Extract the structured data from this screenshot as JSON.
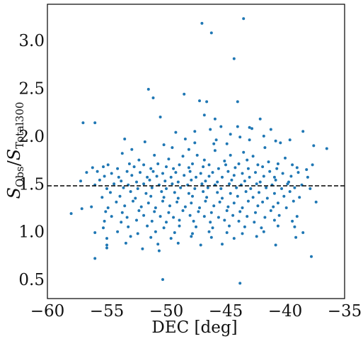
{
  "chart_data": {
    "type": "scatter",
    "xlabel": "DEC [deg]",
    "ylabel": {
      "S1": "S",
      "sub1": "Obs",
      "slash": "/",
      "S2": "S",
      "sub2": "Total300"
    },
    "xlim": [
      -60,
      -35
    ],
    "ylim": [
      0.3,
      3.38
    ],
    "xticks": [
      -60,
      -55,
      -50,
      -45,
      -40,
      -35
    ],
    "xtick_labels": [
      "−60",
      "−55",
      "−50",
      "−45",
      "−40",
      "−35"
    ],
    "yticks": [
      0.5,
      1.0,
      1.5,
      2.0,
      2.5,
      3.0
    ],
    "ytick_labels": [
      "0.5",
      "1.0",
      "1.5",
      "2.0",
      "2.5",
      "3.0"
    ],
    "grid": false,
    "reference_line": {
      "y": 1.48,
      "style": "dashed",
      "color": "#000000"
    },
    "marker_color": "#1f77b4",
    "series": [
      {
        "points": [
          [
            -43.5,
            3.23
          ],
          [
            -47.0,
            3.18
          ],
          [
            -46.2,
            3.08
          ],
          [
            -44.3,
            2.81
          ],
          [
            -51.5,
            2.49
          ],
          [
            -51.1,
            2.4
          ],
          [
            -48.5,
            2.44
          ],
          [
            -47.2,
            2.37
          ],
          [
            -46.6,
            2.36
          ],
          [
            -44.0,
            2.36
          ],
          [
            -46.8,
            2.22
          ],
          [
            -50.5,
            2.2
          ],
          [
            -45.9,
            2.18
          ],
          [
            -42.1,
            2.18
          ],
          [
            -57.0,
            2.14
          ],
          [
            -56.0,
            2.14
          ],
          [
            -45.4,
            2.1
          ],
          [
            -44.0,
            2.1
          ],
          [
            -43.0,
            2.09
          ],
          [
            -42.8,
            2.08
          ],
          [
            -41.2,
            2.07
          ],
          [
            -46.3,
            2.07
          ],
          [
            -47.6,
            2.05
          ],
          [
            -49.2,
            2.04
          ],
          [
            -44.6,
            2.02
          ],
          [
            -38.5,
            2.05
          ],
          [
            -43.8,
            1.99
          ],
          [
            -41.8,
            2.0
          ],
          [
            -53.5,
            1.97
          ],
          [
            -48.4,
            1.97
          ],
          [
            -45.8,
            1.96
          ],
          [
            -43.0,
            1.96
          ],
          [
            -40.8,
            1.95
          ],
          [
            -39.6,
            1.96
          ],
          [
            -51.8,
            1.94
          ],
          [
            -47.6,
            1.93
          ],
          [
            -50.2,
            1.91
          ],
          [
            -46.0,
            1.92
          ],
          [
            -44.9,
            1.92
          ],
          [
            -40.4,
            1.93
          ],
          [
            -37.6,
            1.9
          ],
          [
            -52.9,
            1.86
          ],
          [
            -49.5,
            1.88
          ],
          [
            -48.1,
            1.86
          ],
          [
            -45.9,
            1.85
          ],
          [
            -43.5,
            1.83
          ],
          [
            -41.7,
            1.88
          ],
          [
            -36.5,
            1.87
          ],
          [
            -53.7,
            1.82
          ],
          [
            -51.0,
            1.8
          ],
          [
            -48.6,
            1.79
          ],
          [
            -47.4,
            1.8
          ],
          [
            -44.6,
            1.8
          ],
          [
            -42.7,
            1.79
          ],
          [
            -40.0,
            1.77
          ],
          [
            -52.3,
            1.75
          ],
          [
            -49.8,
            1.76
          ],
          [
            -46.8,
            1.75
          ],
          [
            -45.1,
            1.74
          ],
          [
            -43.2,
            1.75
          ],
          [
            -41.4,
            1.73
          ],
          [
            -54.9,
            1.7
          ],
          [
            -53.1,
            1.71
          ],
          [
            -51.9,
            1.7
          ],
          [
            -50.7,
            1.71
          ],
          [
            -48.9,
            1.7
          ],
          [
            -47.8,
            1.71
          ],
          [
            -46.4,
            1.7
          ],
          [
            -45.0,
            1.7
          ],
          [
            -43.9,
            1.71
          ],
          [
            -42.3,
            1.7
          ],
          [
            -40.6,
            1.71
          ],
          [
            -39.4,
            1.7
          ],
          [
            -37.7,
            1.7
          ],
          [
            -56.2,
            1.67
          ],
          [
            -55.3,
            1.68
          ],
          [
            -54.1,
            1.66
          ],
          [
            -52.7,
            1.68
          ],
          [
            -51.3,
            1.66
          ],
          [
            -50.0,
            1.68
          ],
          [
            -49.4,
            1.66
          ],
          [
            -48.1,
            1.67
          ],
          [
            -46.9,
            1.68
          ],
          [
            -45.6,
            1.66
          ],
          [
            -44.2,
            1.67
          ],
          [
            -43.1,
            1.66
          ],
          [
            -41.9,
            1.68
          ],
          [
            -40.7,
            1.66
          ],
          [
            -39.0,
            1.67
          ],
          [
            -38.2,
            1.65
          ],
          [
            -56.7,
            1.62
          ],
          [
            -55.8,
            1.63
          ],
          [
            -54.6,
            1.61
          ],
          [
            -53.3,
            1.63
          ],
          [
            -52.2,
            1.62
          ],
          [
            -51.1,
            1.63
          ],
          [
            -50.3,
            1.61
          ],
          [
            -49.2,
            1.62
          ],
          [
            -48.0,
            1.63
          ],
          [
            -47.1,
            1.61
          ],
          [
            -46.1,
            1.62
          ],
          [
            -44.8,
            1.63
          ],
          [
            -43.6,
            1.61
          ],
          [
            -42.5,
            1.62
          ],
          [
            -41.3,
            1.63
          ],
          [
            -40.2,
            1.61
          ],
          [
            -38.9,
            1.62
          ],
          [
            -55.2,
            1.58
          ],
          [
            -54.0,
            1.57
          ],
          [
            -52.9,
            1.59
          ],
          [
            -51.6,
            1.57
          ],
          [
            -50.8,
            1.58
          ],
          [
            -49.6,
            1.57
          ],
          [
            -48.5,
            1.59
          ],
          [
            -47.5,
            1.57
          ],
          [
            -46.4,
            1.58
          ],
          [
            -45.3,
            1.57
          ],
          [
            -44.3,
            1.59
          ],
          [
            -43.0,
            1.57
          ],
          [
            -41.8,
            1.58
          ],
          [
            -40.9,
            1.57
          ],
          [
            -39.5,
            1.58
          ],
          [
            -38.1,
            1.57
          ],
          [
            -57.2,
            1.53
          ],
          [
            -55.6,
            1.54
          ],
          [
            -53.8,
            1.53
          ],
          [
            -52.5,
            1.52
          ],
          [
            -51.4,
            1.54
          ],
          [
            -50.1,
            1.53
          ],
          [
            -49.0,
            1.52
          ],
          [
            -47.9,
            1.54
          ],
          [
            -46.7,
            1.53
          ],
          [
            -45.7,
            1.52
          ],
          [
            -44.5,
            1.54
          ],
          [
            -43.4,
            1.53
          ],
          [
            -42.1,
            1.52
          ],
          [
            -40.8,
            1.54
          ],
          [
            -39.7,
            1.52
          ],
          [
            -56.0,
            1.49
          ],
          [
            -54.4,
            1.5
          ],
          [
            -53.2,
            1.49
          ],
          [
            -51.9,
            1.5
          ],
          [
            -50.6,
            1.49
          ],
          [
            -49.5,
            1.5
          ],
          [
            -48.2,
            1.49
          ],
          [
            -47.0,
            1.5
          ],
          [
            -45.9,
            1.49
          ],
          [
            -44.7,
            1.5
          ],
          [
            -43.7,
            1.49
          ],
          [
            -42.4,
            1.5
          ],
          [
            -41.1,
            1.49
          ],
          [
            -39.8,
            1.5
          ],
          [
            -38.6,
            1.49
          ],
          [
            -55.0,
            1.45
          ],
          [
            -53.6,
            1.46
          ],
          [
            -52.4,
            1.45
          ],
          [
            -51.2,
            1.46
          ],
          [
            -50.0,
            1.45
          ],
          [
            -48.8,
            1.46
          ],
          [
            -47.6,
            1.45
          ],
          [
            -46.5,
            1.46
          ],
          [
            -45.4,
            1.45
          ],
          [
            -44.1,
            1.46
          ],
          [
            -42.9,
            1.45
          ],
          [
            -41.6,
            1.46
          ],
          [
            -40.3,
            1.45
          ],
          [
            -39.2,
            1.46
          ],
          [
            -37.9,
            1.45
          ],
          [
            -54.7,
            1.41
          ],
          [
            -53.0,
            1.42
          ],
          [
            -51.7,
            1.4
          ],
          [
            -50.4,
            1.42
          ],
          [
            -49.3,
            1.41
          ],
          [
            -48.1,
            1.4
          ],
          [
            -46.9,
            1.42
          ],
          [
            -45.7,
            1.41
          ],
          [
            -44.6,
            1.4
          ],
          [
            -43.3,
            1.42
          ],
          [
            -42.2,
            1.41
          ],
          [
            -40.9,
            1.4
          ],
          [
            -39.6,
            1.42
          ],
          [
            -55.4,
            1.36
          ],
          [
            -53.9,
            1.37
          ],
          [
            -52.6,
            1.35
          ],
          [
            -51.3,
            1.37
          ],
          [
            -50.2,
            1.36
          ],
          [
            -49.0,
            1.35
          ],
          [
            -47.8,
            1.37
          ],
          [
            -46.6,
            1.36
          ],
          [
            -45.3,
            1.35
          ],
          [
            -44.0,
            1.37
          ],
          [
            -42.7,
            1.36
          ],
          [
            -41.5,
            1.35
          ],
          [
            -40.1,
            1.37
          ],
          [
            -38.8,
            1.36
          ],
          [
            -54.2,
            1.31
          ],
          [
            -52.8,
            1.32
          ],
          [
            -51.5,
            1.3
          ],
          [
            -50.3,
            1.32
          ],
          [
            -49.1,
            1.31
          ],
          [
            -47.9,
            1.3
          ],
          [
            -46.7,
            1.32
          ],
          [
            -45.5,
            1.31
          ],
          [
            -44.3,
            1.3
          ],
          [
            -43.1,
            1.32
          ],
          [
            -41.9,
            1.31
          ],
          [
            -40.6,
            1.3
          ],
          [
            -39.3,
            1.32
          ],
          [
            -37.4,
            1.31
          ],
          [
            -56.3,
            1.26
          ],
          [
            -54.9,
            1.25
          ],
          [
            -53.5,
            1.27
          ],
          [
            -52.1,
            1.26
          ],
          [
            -50.9,
            1.25
          ],
          [
            -49.7,
            1.27
          ],
          [
            -48.4,
            1.26
          ],
          [
            -47.2,
            1.25
          ],
          [
            -46.0,
            1.27
          ],
          [
            -44.8,
            1.26
          ],
          [
            -43.6,
            1.25
          ],
          [
            -42.3,
            1.27
          ],
          [
            -41.0,
            1.26
          ],
          [
            -39.9,
            1.25
          ],
          [
            -58.0,
            1.19
          ],
          [
            -57.1,
            1.24
          ],
          [
            -55.1,
            1.21
          ],
          [
            -53.7,
            1.2
          ],
          [
            -52.3,
            1.22
          ],
          [
            -51.0,
            1.21
          ],
          [
            -49.8,
            1.2
          ],
          [
            -48.6,
            1.22
          ],
          [
            -47.3,
            1.21
          ],
          [
            -46.2,
            1.2
          ],
          [
            -44.9,
            1.22
          ],
          [
            -43.8,
            1.21
          ],
          [
            -42.5,
            1.2
          ],
          [
            -41.2,
            1.22
          ],
          [
            -54.6,
            1.16
          ],
          [
            -53.3,
            1.15
          ],
          [
            -51.9,
            1.17
          ],
          [
            -50.5,
            1.16
          ],
          [
            -49.4,
            1.15
          ],
          [
            -48.0,
            1.17
          ],
          [
            -46.8,
            1.16
          ],
          [
            -45.6,
            1.15
          ],
          [
            -44.4,
            1.17
          ],
          [
            -43.2,
            1.16
          ],
          [
            -41.7,
            1.15
          ],
          [
            -40.5,
            1.17
          ],
          [
            -39.0,
            1.16
          ],
          [
            -55.2,
            1.11
          ],
          [
            -53.8,
            1.1
          ],
          [
            -52.5,
            1.12
          ],
          [
            -51.2,
            1.11
          ],
          [
            -50.0,
            1.1
          ],
          [
            -48.9,
            1.12
          ],
          [
            -47.7,
            1.11
          ],
          [
            -46.3,
            1.1
          ],
          [
            -45.1,
            1.12
          ],
          [
            -43.9,
            1.11
          ],
          [
            -42.6,
            1.1
          ],
          [
            -40.9,
            1.12
          ],
          [
            -39.4,
            1.11
          ],
          [
            -55.3,
            1.04
          ],
          [
            -53.2,
            1.05
          ],
          [
            -51.6,
            1.06
          ],
          [
            -50.2,
            1.04
          ],
          [
            -48.9,
            1.06
          ],
          [
            -47.5,
            1.05
          ],
          [
            -46.1,
            1.04
          ],
          [
            -44.7,
            1.06
          ],
          [
            -43.4,
            1.05
          ],
          [
            -42.0,
            1.04
          ],
          [
            -40.6,
            1.06
          ],
          [
            -39.2,
            1.05
          ],
          [
            -56.0,
            0.99
          ],
          [
            -54.1,
            1.0
          ],
          [
            -52.4,
            0.98
          ],
          [
            -50.9,
            1.0
          ],
          [
            -49.3,
            0.99
          ],
          [
            -47.8,
            0.98
          ],
          [
            -46.4,
            1.0
          ],
          [
            -44.9,
            0.99
          ],
          [
            -43.6,
            0.98
          ],
          [
            -41.8,
            1.0
          ],
          [
            -38.5,
            0.99
          ],
          [
            -55.0,
            0.93
          ],
          [
            -53.0,
            0.95
          ],
          [
            -51.3,
            0.94
          ],
          [
            -49.6,
            0.93
          ],
          [
            -47.9,
            0.95
          ],
          [
            -46.2,
            0.94
          ],
          [
            -44.3,
            0.93
          ],
          [
            -42.4,
            0.95
          ],
          [
            -39.1,
            0.94
          ],
          [
            -55.0,
            0.86
          ],
          [
            -53.4,
            0.88
          ],
          [
            -50.7,
            0.87
          ],
          [
            -49.0,
            0.88
          ],
          [
            -47.1,
            0.86
          ],
          [
            -45.3,
            0.87
          ],
          [
            -40.8,
            0.86
          ],
          [
            -55.0,
            0.83
          ],
          [
            -52.0,
            0.82
          ],
          [
            -50.6,
            0.8
          ],
          [
            -37.8,
            0.74
          ],
          [
            -56.0,
            0.72
          ],
          [
            -50.3,
            0.5
          ],
          [
            -43.8,
            0.46
          ]
        ]
      }
    ]
  }
}
